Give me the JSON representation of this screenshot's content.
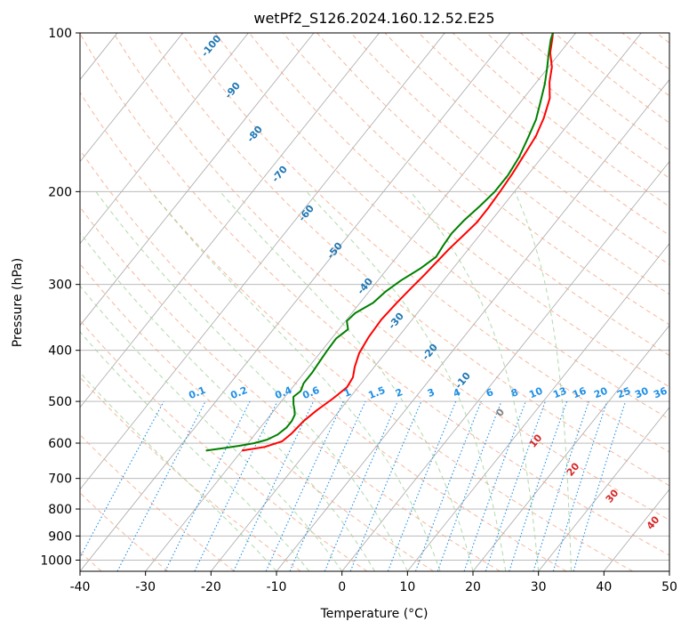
{
  "chart_data": {
    "type": "line",
    "title": "wetPf2_S126.2024.160.12.52.E25",
    "xlabel": "Temperature (°C)",
    "ylabel": "Pressure (hPa)",
    "xlim": [
      -40,
      50
    ],
    "ylim": [
      1050,
      100
    ],
    "y_scale": "log",
    "grid": true,
    "x_ticks": [
      "-40",
      "-30",
      "-20",
      "-10",
      "0",
      "10",
      "20",
      "30",
      "40",
      "50"
    ],
    "y_ticks": [
      {
        "p": 100,
        "label": "100"
      },
      {
        "p": 200,
        "label": "200"
      },
      {
        "p": 300,
        "label": "300"
      },
      {
        "p": 400,
        "label": "400"
      },
      {
        "p": 500,
        "label": "500"
      },
      {
        "p": 600,
        "label": "600"
      },
      {
        "p": 700,
        "label": "700"
      },
      {
        "p": 800,
        "label": "800"
      },
      {
        "p": 900,
        "label": "900"
      },
      {
        "p": 1000,
        "label": "1000"
      }
    ],
    "series": [
      {
        "color": "#ff0000",
        "points": [
          [
            -30,
            620
          ],
          [
            -27,
            610
          ],
          [
            -25,
            595
          ],
          [
            -24.5,
            575
          ],
          [
            -24.2,
            545
          ],
          [
            -23.5,
            520
          ],
          [
            -22.5,
            495
          ],
          [
            -21.7,
            470
          ],
          [
            -22,
            450
          ],
          [
            -23,
            430
          ],
          [
            -24,
            405
          ],
          [
            -24.5,
            378
          ],
          [
            -24.7,
            350
          ],
          [
            -24.4,
            325
          ],
          [
            -24,
            305
          ],
          [
            -23.6,
            288
          ],
          [
            -23.3,
            272
          ],
          [
            -23,
            258
          ],
          [
            -22.5,
            243
          ],
          [
            -22,
            229
          ],
          [
            -22,
            215
          ],
          [
            -22.2,
            200
          ],
          [
            -22.5,
            185
          ],
          [
            -23,
            170
          ],
          [
            -23.5,
            157
          ],
          [
            -24.5,
            145
          ],
          [
            -26,
            133
          ],
          [
            -28,
            124
          ],
          [
            -29.5,
            116
          ],
          [
            -31.5,
            109
          ],
          [
            -33,
            102
          ],
          [
            -33.5,
            100
          ]
        ]
      },
      {
        "color": "#008000",
        "points": [
          [
            -35.5,
            620
          ],
          [
            -33,
            613
          ],
          [
            -31,
            607
          ],
          [
            -29,
            600
          ],
          [
            -27.5,
            591
          ],
          [
            -26.5,
            578
          ],
          [
            -26,
            560
          ],
          [
            -26,
            545
          ],
          [
            -26.3,
            530
          ],
          [
            -27,
            518
          ],
          [
            -27.8,
            506
          ],
          [
            -28.7,
            490
          ],
          [
            -28.3,
            478
          ],
          [
            -28.8,
            462
          ],
          [
            -28.8,
            440
          ],
          [
            -29,
            420
          ],
          [
            -29.2,
            400
          ],
          [
            -29.3,
            380
          ],
          [
            -28.6,
            365
          ],
          [
            -29.8,
            352
          ],
          [
            -29.5,
            340
          ],
          [
            -28,
            325
          ],
          [
            -27.5,
            310
          ],
          [
            -26.5,
            295
          ],
          [
            -25,
            280
          ],
          [
            -24,
            266
          ],
          [
            -24.3,
            253
          ],
          [
            -24.5,
            240
          ],
          [
            -24.2,
            227
          ],
          [
            -23.5,
            213
          ],
          [
            -23,
            200
          ],
          [
            -23,
            186
          ],
          [
            -23.5,
            172
          ],
          [
            -24.5,
            158
          ],
          [
            -25.5,
            146
          ],
          [
            -27,
            135
          ],
          [
            -28.5,
            125
          ],
          [
            -30,
            117
          ],
          [
            -31.5,
            110
          ],
          [
            -33,
            103
          ],
          [
            -33.5,
            100
          ]
        ]
      }
    ],
    "dry_adiabat_labels": [
      "-100",
      "-90",
      "-80",
      "-70",
      "-60",
      "-50",
      "-40",
      "-30",
      "-20",
      "-10",
      "0",
      "10",
      "20",
      "30",
      "40"
    ],
    "mixing_ratio_labels": [
      "0.1",
      "0.2",
      "0.4",
      "0.6",
      "1",
      "1.5",
      "2",
      "3",
      "4",
      "6",
      "8",
      "10",
      "13",
      "16",
      "20",
      "25",
      "30",
      "36"
    ],
    "colors": {
      "isotherm": "#b0b0b0",
      "isobar": "#b0b0b0",
      "dry_adiabat": "#f4a582",
      "moist_adiabat": "#a6d6a0",
      "mixing_ratio": "#1f8fe6",
      "dry_label_neg": "#1f77b4",
      "dry_label_zero": "#808080",
      "dry_label_pos": "#d62728",
      "mixing_label": "#1f8fe6"
    }
  }
}
